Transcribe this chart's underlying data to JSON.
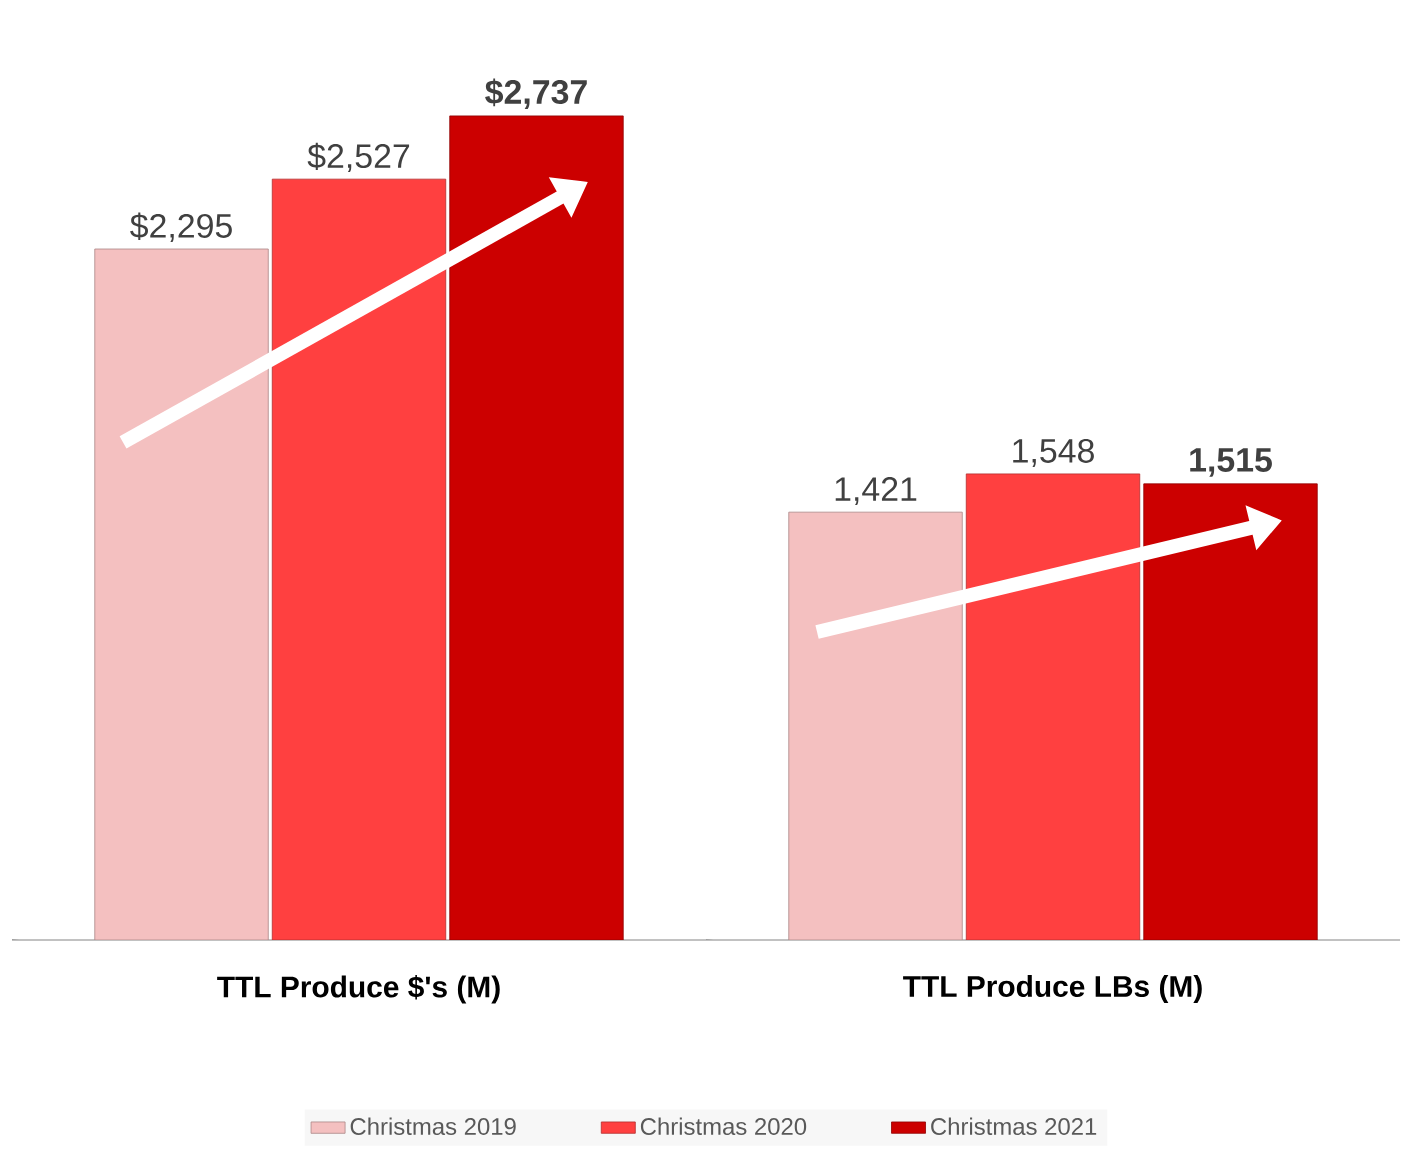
{
  "chart_data": {
    "type": "bar",
    "categories": [
      "TTL Produce $'s (M)",
      "TTL Produce LBs (M)"
    ],
    "series": [
      {
        "name": "Christmas 2019",
        "color": "#f4c0c0",
        "values": [
          2295,
          1421
        ],
        "value_labels": [
          "$2,295",
          "1,421"
        ]
      },
      {
        "name": "Christmas 2020",
        "color": "#ff4040",
        "values": [
          2527,
          1548
        ],
        "value_labels": [
          "$2,527",
          "1,548"
        ]
      },
      {
        "name": "Christmas 2021",
        "color": "#cc0000",
        "values": [
          2737,
          1515
        ],
        "value_labels": [
          "**$2,737**",
          "**1,515**"
        ]
      }
    ],
    "legend": "bottom"
  }
}
